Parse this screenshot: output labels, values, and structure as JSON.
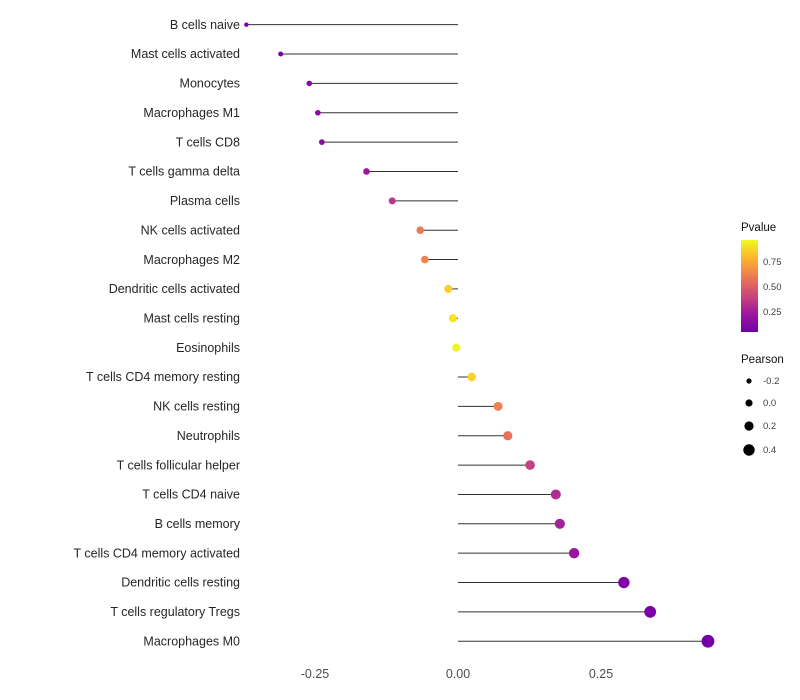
{
  "figure": {
    "background": "#ffffff"
  },
  "chart_data": {
    "type": "scatter",
    "subtype": "lollipop",
    "orientation": "horizontal",
    "title": "",
    "xlabel": "",
    "ylabel": "",
    "grid": false,
    "x_axis": {
      "range": [
        -0.42,
        0.47
      ],
      "ticks": [
        -0.25,
        0,
        0.25
      ],
      "tick_labels": [
        "-0.25",
        "0.00",
        "0.25"
      ]
    },
    "stem_color": "#333333",
    "axis_text_color": "#262626",
    "tick_text_color": "#4d4d4d",
    "categories": [
      "B cells naive",
      "Mast cells activated",
      "Monocytes",
      "Macrophages M1",
      "T cells CD8",
      "T cells gamma delta",
      "Plasma cells",
      "NK cells activated",
      "Macrophages M2",
      "Dendritic cells activated",
      "Mast cells resting",
      "Eosinophils",
      "T cells CD4 memory resting",
      "NK cells resting",
      "Neutrophils",
      "T cells follicular helper",
      "T cells CD4 naive",
      "B cells memory",
      "T cells CD4 memory activated",
      "Dendritic cells resting",
      "T cells regulatory  Tregs",
      "Macrophages M0"
    ],
    "points": [
      {
        "label": "B cells naive",
        "pearson": -0.37,
        "pvalue": 0.08,
        "color": "#7801a8",
        "radius": 2.2
      },
      {
        "label": "Mast cells activated",
        "pearson": -0.31,
        "pvalue": 0.13,
        "color": "#7e03a8",
        "radius": 2.5
      },
      {
        "label": "Monocytes",
        "pearson": -0.26,
        "pvalue": 0.21,
        "color": "#8606a6",
        "radius": 2.8
      },
      {
        "label": "Macrophages M1",
        "pearson": -0.245,
        "pvalue": 0.24,
        "color": "#8a09a5",
        "radius": 2.8
      },
      {
        "label": "T cells CD8",
        "pearson": -0.238,
        "pvalue": 0.26,
        "color": "#8e0ca4",
        "radius": 2.9
      },
      {
        "label": "T cells gamma delta",
        "pearson": -0.16,
        "pvalue": 0.36,
        "color": "#9c179e",
        "radius": 3.3
      },
      {
        "label": "Plasma cells",
        "pearson": -0.115,
        "pvalue": 0.5,
        "color": "#bc3587",
        "radius": 3.5
      },
      {
        "label": "NK cells activated",
        "pearson": -0.066,
        "pvalue": 0.76,
        "color": "#ed7953",
        "radius": 3.8
      },
      {
        "label": "Macrophages M2",
        "pearson": -0.058,
        "pvalue": 0.79,
        "color": "#f1814d",
        "radius": 3.8
      },
      {
        "label": "Dendritic cells activated",
        "pearson": -0.017,
        "pvalue": 0.92,
        "color": "#fcce25",
        "radius": 4.0
      },
      {
        "label": "Mast cells resting",
        "pearson": -0.009,
        "pvalue": 0.96,
        "color": "#f7e225",
        "radius": 4.1
      },
      {
        "label": "Eosinophils",
        "pearson": -0.003,
        "pvalue": 0.98,
        "color": "#f1f525",
        "radius": 4.1
      },
      {
        "label": "T cells CD4 memory resting",
        "pearson": 0.024,
        "pvalue": 0.91,
        "color": "#fcd025",
        "radius": 4.2
      },
      {
        "label": "NK cells resting",
        "pearson": 0.07,
        "pvalue": 0.78,
        "color": "#f0804e",
        "radius": 4.5
      },
      {
        "label": "Neutrophils",
        "pearson": 0.087,
        "pvalue": 0.7,
        "color": "#e76f5b",
        "radius": 4.6
      },
      {
        "label": "T cells follicular helper",
        "pearson": 0.126,
        "pvalue": 0.52,
        "color": "#c5417f",
        "radius": 4.8
      },
      {
        "label": "T cells CD4 naive",
        "pearson": 0.171,
        "pvalue": 0.42,
        "color": "#b02d91",
        "radius": 5.0
      },
      {
        "label": "B cells memory",
        "pearson": 0.178,
        "pvalue": 0.4,
        "color": "#a3249a",
        "radius": 5.1
      },
      {
        "label": "T cells CD4 memory activated",
        "pearson": 0.203,
        "pvalue": 0.34,
        "color": "#99159f",
        "radius": 5.2
      },
      {
        "label": "Dendritic cells resting",
        "pearson": 0.29,
        "pvalue": 0.18,
        "color": "#8104a7",
        "radius": 5.7
      },
      {
        "label": "T cells regulatory  Tregs",
        "pearson": 0.336,
        "pvalue": 0.1,
        "color": "#7a02a8",
        "radius": 5.9
      },
      {
        "label": "Macrophages M0",
        "pearson": 0.437,
        "pvalue": 0.04,
        "color": "#7301a8",
        "radius": 6.4
      }
    ],
    "legend_color": {
      "title": "Pvalue",
      "tick_labels": [
        "0.75",
        "0.50",
        "0.25"
      ],
      "gradient_top_to_bottom": [
        "#f0f921",
        "#fdb32f",
        "#ed7953",
        "#cc4778",
        "#9c179e",
        "#7301a8"
      ],
      "position": "right"
    },
    "legend_size": {
      "title": "Pearson",
      "color": "#000000",
      "entries": [
        {
          "label": "-0.2",
          "radius": 2.6
        },
        {
          "label": "0.0",
          "radius": 3.6
        },
        {
          "label": "0.2",
          "radius": 4.6
        },
        {
          "label": "0.4",
          "radius": 5.7
        }
      ],
      "position": "right"
    }
  }
}
